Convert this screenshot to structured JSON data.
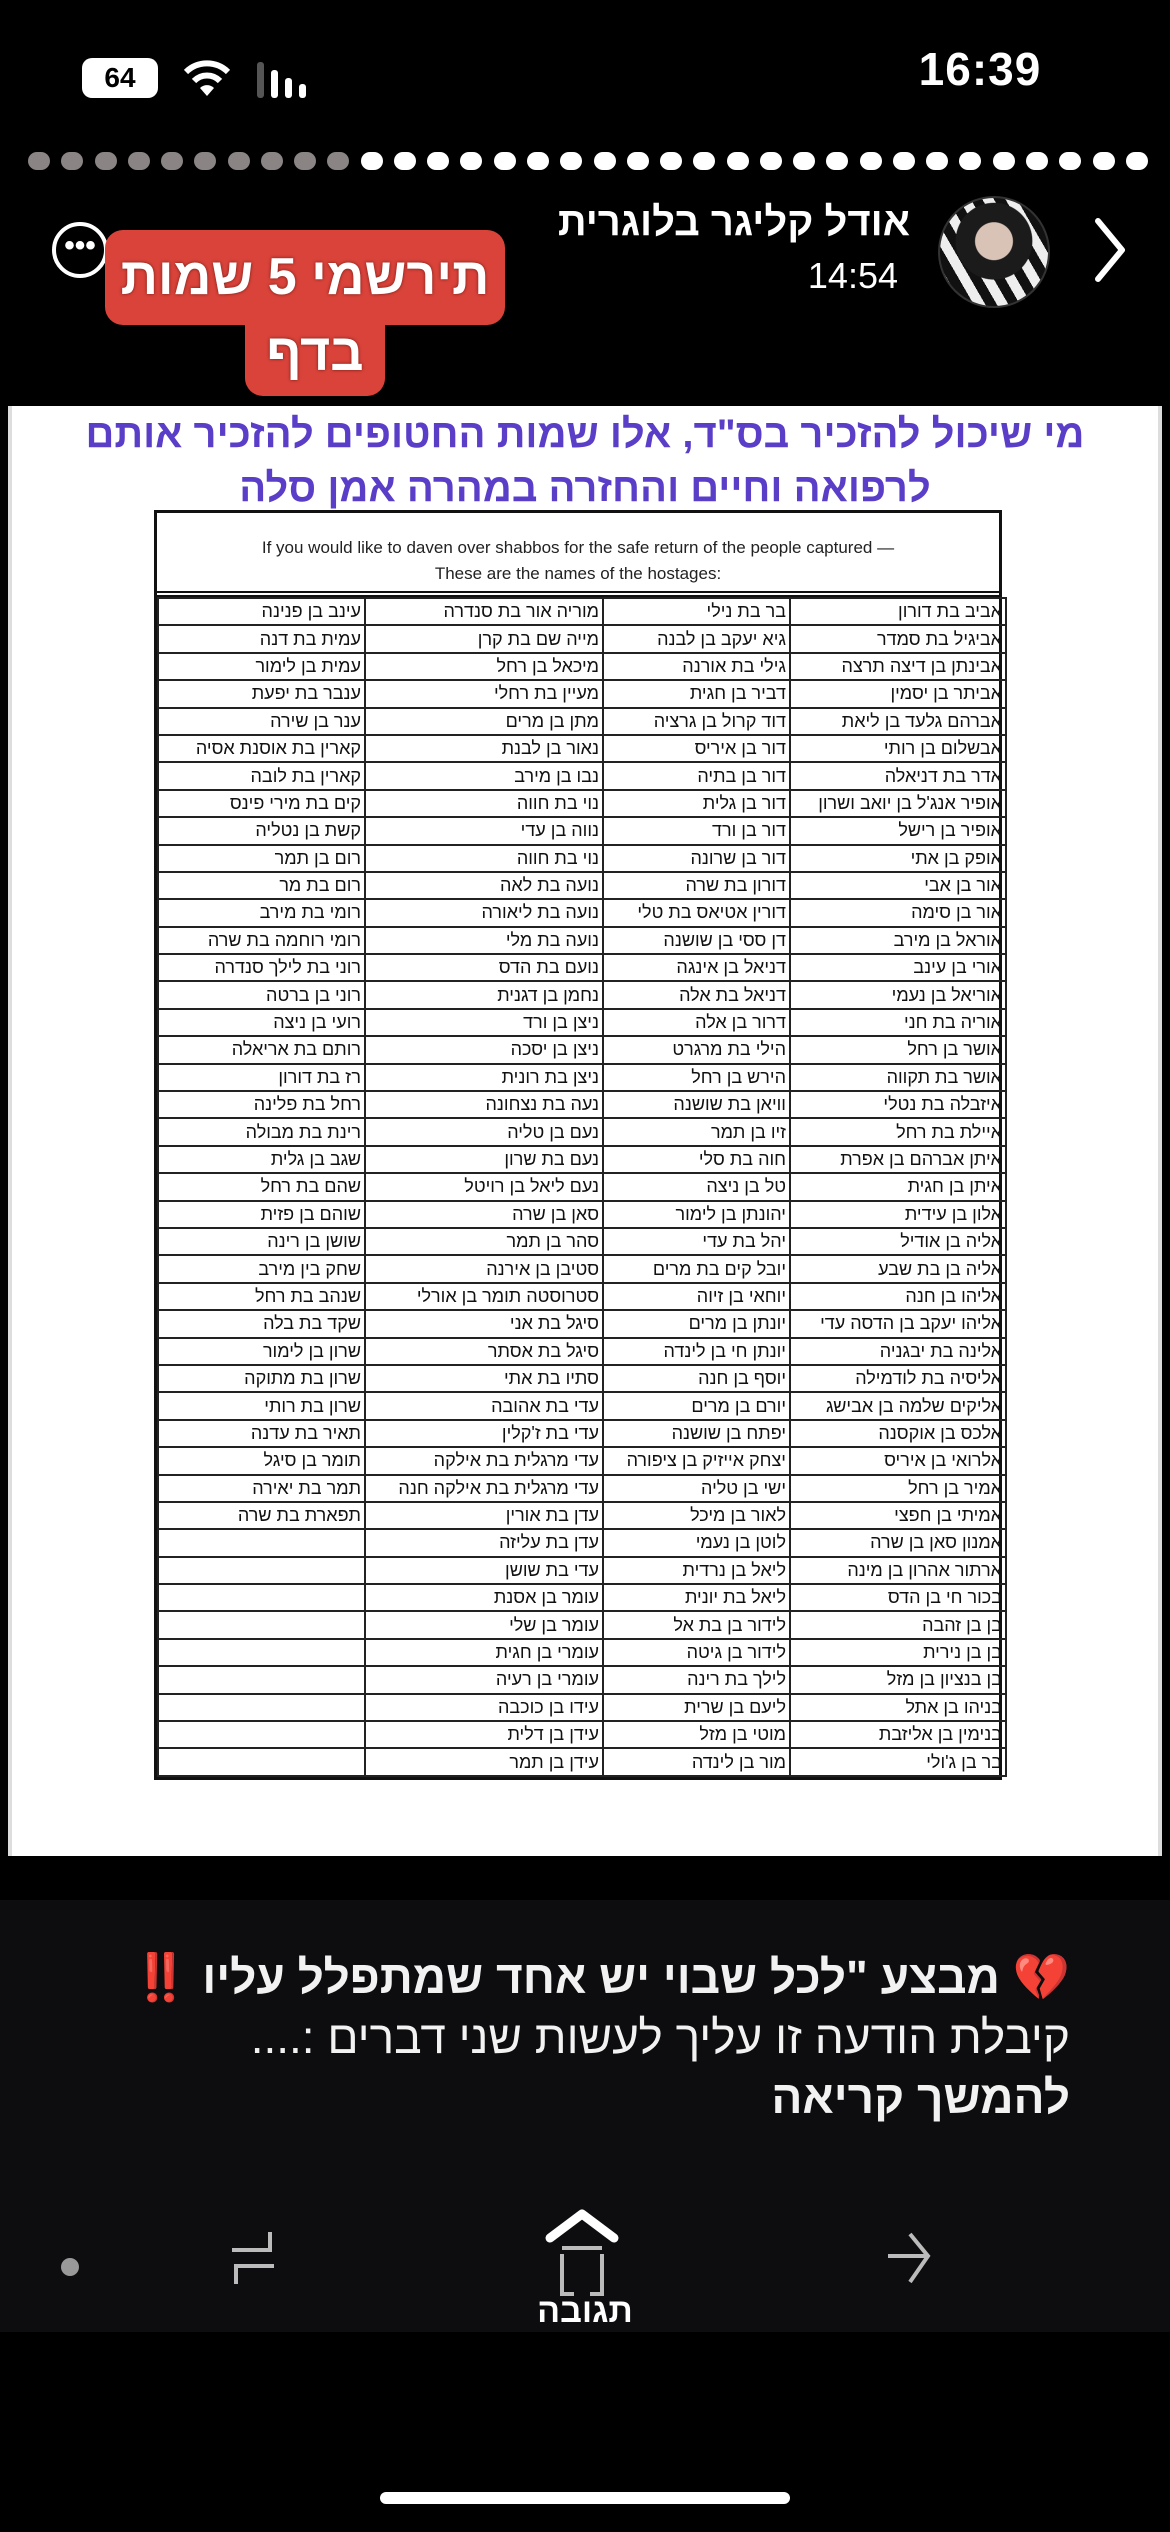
{
  "status_bar": {
    "time": "16:39",
    "battery": "64",
    "wifi_icon": "wifi-icon",
    "signal_icon": "cellular-signal-icon"
  },
  "story_progress": {
    "total_segments": 34,
    "seen_segments": 10
  },
  "header": {
    "username": "אודל קליגר בלוגרית",
    "post_time": "14:54",
    "more_icon": "more-horizontal-icon",
    "next_icon": "chevron-right-icon"
  },
  "sticker": {
    "line1": "תירשמי 5 שמות",
    "line2": "בדף",
    "color": "#d9433a"
  },
  "document": {
    "title_line1": "מי שיכול להזכיר בס\"ד, אלו שמות החטופים להזכיר אותם",
    "title_line2": "לרפואה וחיים והחזרה במהרה אמן סלה",
    "title_color": "#5a3ec8",
    "table_header_line1": "If you would like to daven over shabbos for the safe return of the people captured —",
    "table_header_line2": "These are the names of the hostages:",
    "rows": [
      [
        "אביב בת דורון",
        "בר בת נילי",
        "מוריה אור בת סנדרה",
        "עינב בן פנינה"
      ],
      [
        "אביגיל בת סמדר",
        "גיא יעקב בן לבנה",
        "מייה שם בת קרן",
        "עמית בת דנה"
      ],
      [
        "אבינתן בן דיצה תרצה",
        "גילי בת אורנה",
        "מיכאל בן רחל",
        "עמית בן לימור"
      ],
      [
        "אביתר בן יסמין",
        "דביר בן חגית",
        "מעיין בת רחלי",
        "ענבר בת יפעת"
      ],
      [
        "אברהם גלעד בן ליאת",
        "דוד קרול בן גרציה",
        "מתן בן מרים",
        "ענר בן שירה"
      ],
      [
        "אבשלום בן רותי",
        "דור בן איריס",
        "נאור בן לבנת",
        "קארין בת אוסנת אסיה"
      ],
      [
        "אדר בת דניאלה",
        "דור בן בתיה",
        "נבו בן מירב",
        "קארין בת לובה"
      ],
      [
        "אופיר אנג'ל בן יואב ושרון",
        "דור בן גלית",
        "נוי בת חווה",
        "קים בת מירי פינס"
      ],
      [
        "אופיר בן רישל",
        "דור בן ורד",
        "נווה בן עדי",
        "קשת בן נטליה"
      ],
      [
        "אופק בן אתי",
        "דור בן שרונה",
        "נוי בת חווה",
        "רום בן תמר"
      ],
      [
        "אור בן אבי",
        "דורון בת שרה",
        "נועה בת לאה",
        "רום בת מר"
      ],
      [
        "אור בן סימה",
        "דורין אטיאס בת טלי",
        "נועה בת ליאורה",
        "רומי בת מירב"
      ],
      [
        "אוראל בן מירב",
        "דן ססי בן שושנה",
        "נועה בת מלי",
        "רומי רוחמה בת שרה"
      ],
      [
        "אורי בן עינב",
        "דניאל בן אינגה",
        "נועם בת הדס",
        "רוני בת לילך סנדרה"
      ],
      [
        "אוריאל בן נעמי",
        "דניאל בת אלה",
        "נחמן בן דגנית",
        "רוני בן ברטה"
      ],
      [
        "אוריה בת חני",
        "דרור בן אלה",
        "ניצן בן ורד",
        "רועי בן ניצה"
      ],
      [
        "אושר בן רחל",
        "הילי בת מרגרט",
        "ניצן בן יסכה",
        "רותם בת אריאלה"
      ],
      [
        "אושר בת תקווה",
        "הירש בן רחל",
        "ניצן בת רונית",
        "רז בת דורון"
      ],
      [
        "איזבלה בת נטלי",
        "וויאן בת שושנה",
        "נעה בת נצחונה",
        "רחל בת פלינה"
      ],
      [
        "איילת בת רחל",
        "זיו בן תמר",
        "נעם בן טליה",
        "רינת בת מבולה"
      ],
      [
        "איתן אברהם בן אפרת",
        "חוה בת סלי",
        "נעם בת שרון",
        "שגב בן גלית"
      ],
      [
        "איתן בן חגית",
        "טל בן ניצה",
        "נעם ליאל בן רויטל",
        "שהם בת רחל"
      ],
      [
        "אלון בן עידית",
        "יהונתן בן לימור",
        "סאן בן שרה",
        "שוהם בן פזית"
      ],
      [
        "אליה בן אודיל",
        "יהל בת עדי",
        "סהר בן תמר",
        "שושן בן רינה"
      ],
      [
        "אליה בן בת שבע",
        "יובל קים בת מרים",
        "סטיבן בן אירנה",
        "שחק בין מירב"
      ],
      [
        "אליהו בן חנה",
        "יוחאי בן זיוה",
        "סטרוסטה תומר בן אורלי",
        "שנהב בת רחל"
      ],
      [
        "אליהו יעקב בן הדסה עדי",
        "יונתן בן מרים",
        "סיגל בת אני",
        "שקד בת בלה"
      ],
      [
        "אלינה בת יבגניה",
        "יונתן חי בן לינדה",
        "סיגל בת אסתר",
        "שרון בן לימור"
      ],
      [
        "אליסיה בת לודמילה",
        "יוסף בן חנה",
        "סתיו בת אתי",
        "שרון בת מתוקה"
      ],
      [
        "אליקים שלמה בן אבישג",
        "יורם בן מרים",
        "עדי בת אהובה",
        "שרון בת רותי"
      ],
      [
        "אלכס בן אוקסנה",
        "יפתח בן שושנה",
        "עדי בת ז'קלין",
        "תאיר בת עדנה"
      ],
      [
        "אלרואי בן איריס",
        "יצחק אייזיק בן ציפורה",
        "עדי מרגלית בת אילקה",
        "תומר בן סיגל"
      ],
      [
        "אמיר בן רחל",
        "ישי בן טליה",
        "עדי מרגלית בת אילקה חנה",
        "תמר בת יאירה"
      ],
      [
        "אמיתי בן חפצי",
        "לאור בן מיכל",
        "עדן בת אורין",
        "תפארת בת שרה"
      ],
      [
        "אמנון סאן בן שרה",
        "לוטן בן נעמי",
        "עדן בת עליזה",
        ""
      ],
      [
        "ארתור אהרון בן מינה",
        "ליאל בן נרדית",
        "עדי בת שושן",
        ""
      ],
      [
        "בכור חי בן הדס",
        "ליאל בת יונית",
        "עומר בן אסנת",
        ""
      ],
      [
        "בן בן זהבה",
        "לידור בן בת אל",
        "עומר בן שלי",
        ""
      ],
      [
        "בן בן נירית",
        "לידור בן גיטה",
        "עומרי בן חגית",
        ""
      ],
      [
        "בן בנציון בן מזל",
        "לילך בת רינה",
        "עומרי בן רעיה",
        ""
      ],
      [
        "בניהו בן אתל",
        "ליעם בן שרית",
        "עידו בן כוכבה",
        ""
      ],
      [
        "בנימין בן אליזבת",
        "מוטי בן מזל",
        "עידן בן דלית",
        ""
      ],
      [
        "בר בן ג'ולי",
        "מור בן לינדה",
        "עידן בן תמר",
        ""
      ]
    ]
  },
  "caption": {
    "line1": "💔 מבצע \"לכל שבוי יש אחד שמתפלל עליו ‼️",
    "line2": "קיבלת הודעה זו עליך לעשות  שני דברים :....",
    "line3": "להמשך קריאה"
  },
  "bottom_nav": {
    "reply_label": "תגובה",
    "icons": [
      "dot-icon",
      "repost-icon",
      "reply-icon",
      "share-icon"
    ]
  }
}
